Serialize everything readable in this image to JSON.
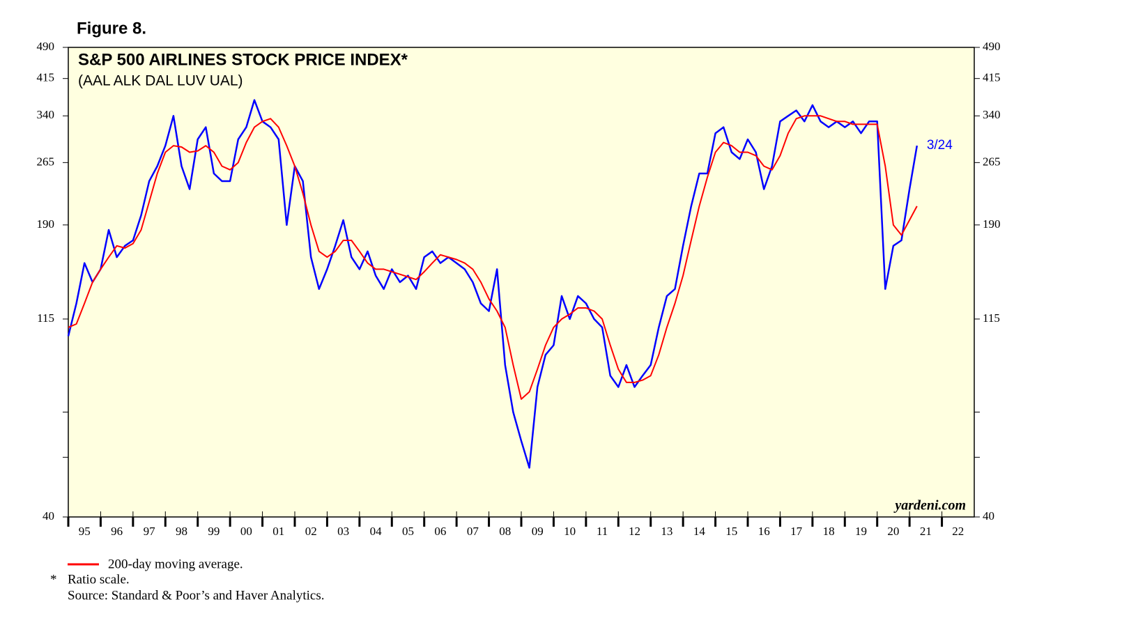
{
  "chart_data": {
    "type": "line",
    "figure_label": "Figure 8.",
    "title": "S&P 500 AIRLINES STOCK PRICE INDEX*",
    "subtitle": "(AAL ALK DAL LUV UAL)",
    "watermark": "yardeni.com",
    "annotation": "3/24",
    "footnotes": [
      "*",
      "Ratio scale.",
      "Source: Standard & Poor’s and Haver Analytics."
    ],
    "log_scale": true,
    "background": "#ffffe0",
    "x": [
      1995.0,
      1995.25,
      1995.5,
      1995.75,
      1996.0,
      1996.25,
      1996.5,
      1996.75,
      1997.0,
      1997.25,
      1997.5,
      1997.75,
      1998.0,
      1998.25,
      1998.5,
      1998.75,
      1999.0,
      1999.25,
      1999.5,
      1999.75,
      2000.0,
      2000.25,
      2000.5,
      2000.75,
      2001.0,
      2001.25,
      2001.5,
      2001.75,
      2002.0,
      2002.25,
      2002.5,
      2002.75,
      2003.0,
      2003.25,
      2003.5,
      2003.75,
      2004.0,
      2004.25,
      2004.5,
      2004.75,
      2005.0,
      2005.25,
      2005.5,
      2005.75,
      2006.0,
      2006.25,
      2006.5,
      2006.75,
      2007.0,
      2007.25,
      2007.5,
      2007.75,
      2008.0,
      2008.25,
      2008.5,
      2008.75,
      2009.0,
      2009.25,
      2009.5,
      2009.75,
      2010.0,
      2010.25,
      2010.5,
      2010.75,
      2011.0,
      2011.25,
      2011.5,
      2011.75,
      2012.0,
      2012.25,
      2012.5,
      2012.75,
      2013.0,
      2013.25,
      2013.5,
      2013.75,
      2014.0,
      2014.25,
      2014.5,
      2014.75,
      2015.0,
      2015.25,
      2015.5,
      2015.75,
      2016.0,
      2016.25,
      2016.5,
      2016.75,
      2017.0,
      2017.25,
      2017.5,
      2017.75,
      2018.0,
      2018.25,
      2018.5,
      2018.75,
      2019.0,
      2019.25,
      2019.5,
      2019.75,
      2020.0,
      2020.25,
      2020.5,
      2020.75,
      2021.0,
      2021.23
    ],
    "series": [
      {
        "color": "#0000ff",
        "values": [
          105,
          125,
          155,
          140,
          150,
          185,
          160,
          170,
          175,
          200,
          240,
          260,
          290,
          340,
          260,
          230,
          300,
          320,
          250,
          240,
          240,
          300,
          320,
          370,
          330,
          320,
          300,
          190,
          260,
          240,
          160,
          135,
          150,
          170,
          195,
          160,
          150,
          165,
          145,
          135,
          150,
          140,
          145,
          135,
          160,
          165,
          155,
          160,
          155,
          150,
          140,
          125,
          120,
          150,
          90,
          70,
          60,
          52,
          80,
          95,
          100,
          130,
          115,
          130,
          125,
          115,
          110,
          85,
          80,
          90,
          80,
          85,
          90,
          110,
          130,
          135,
          170,
          210,
          250,
          250,
          310,
          320,
          280,
          270,
          300,
          280,
          230,
          260,
          330,
          340,
          350,
          330,
          360,
          330,
          320,
          330,
          320,
          330,
          310,
          330,
          330,
          135,
          170,
          175,
          230,
          290
        ]
      },
      {
        "name": "200-day moving average.",
        "color": "#ff0000",
        "values": [
          110,
          112,
          125,
          140,
          150,
          160,
          170,
          168,
          172,
          185,
          215,
          250,
          280,
          290,
          288,
          280,
          282,
          290,
          280,
          260,
          255,
          265,
          295,
          320,
          330,
          335,
          320,
          290,
          260,
          225,
          190,
          165,
          160,
          165,
          175,
          175,
          165,
          155,
          150,
          150,
          148,
          146,
          144,
          142,
          148,
          155,
          162,
          160,
          158,
          155,
          150,
          140,
          128,
          120,
          110,
          90,
          75,
          78,
          88,
          100,
          110,
          115,
          118,
          122,
          122,
          120,
          115,
          100,
          88,
          82,
          82,
          83,
          85,
          95,
          110,
          125,
          145,
          175,
          210,
          245,
          280,
          295,
          290,
          280,
          280,
          275,
          260,
          255,
          275,
          310,
          335,
          340,
          340,
          340,
          335,
          330,
          330,
          325,
          325,
          325,
          325,
          260,
          190,
          180,
          195,
          210
        ]
      }
    ],
    "xlim": [
      1995,
      2023
    ],
    "xticks": [
      {
        "value": 1995,
        "label": "95"
      },
      {
        "value": 1996,
        "label": "96"
      },
      {
        "value": 1997,
        "label": "97"
      },
      {
        "value": 1998,
        "label": "98"
      },
      {
        "value": 1999,
        "label": "99"
      },
      {
        "value": 2000,
        "label": "00"
      },
      {
        "value": 2001,
        "label": "01"
      },
      {
        "value": 2002,
        "label": "02"
      },
      {
        "value": 2003,
        "label": "03"
      },
      {
        "value": 2004,
        "label": "04"
      },
      {
        "value": 2005,
        "label": "05"
      },
      {
        "value": 2006,
        "label": "06"
      },
      {
        "value": 2007,
        "label": "07"
      },
      {
        "value": 2008,
        "label": "08"
      },
      {
        "value": 2009,
        "label": "09"
      },
      {
        "value": 2010,
        "label": "10"
      },
      {
        "value": 2011,
        "label": "11"
      },
      {
        "value": 2012,
        "label": "12"
      },
      {
        "value": 2013,
        "label": "13"
      },
      {
        "value": 2014,
        "label": "14"
      },
      {
        "value": 2015,
        "label": "15"
      },
      {
        "value": 2016,
        "label": "16"
      },
      {
        "value": 2017,
        "label": "17"
      },
      {
        "value": 2018,
        "label": "18"
      },
      {
        "value": 2019,
        "label": "19"
      },
      {
        "value": 2020,
        "label": "20"
      },
      {
        "value": 2021,
        "label": "21"
      },
      {
        "value": 2022,
        "label": "22"
      }
    ],
    "ylim": [
      40,
      490
    ],
    "yticks": [
      40,
      115,
      190,
      265,
      340,
      415,
      490
    ],
    "minor_yticks": [
      55,
      70
    ]
  }
}
